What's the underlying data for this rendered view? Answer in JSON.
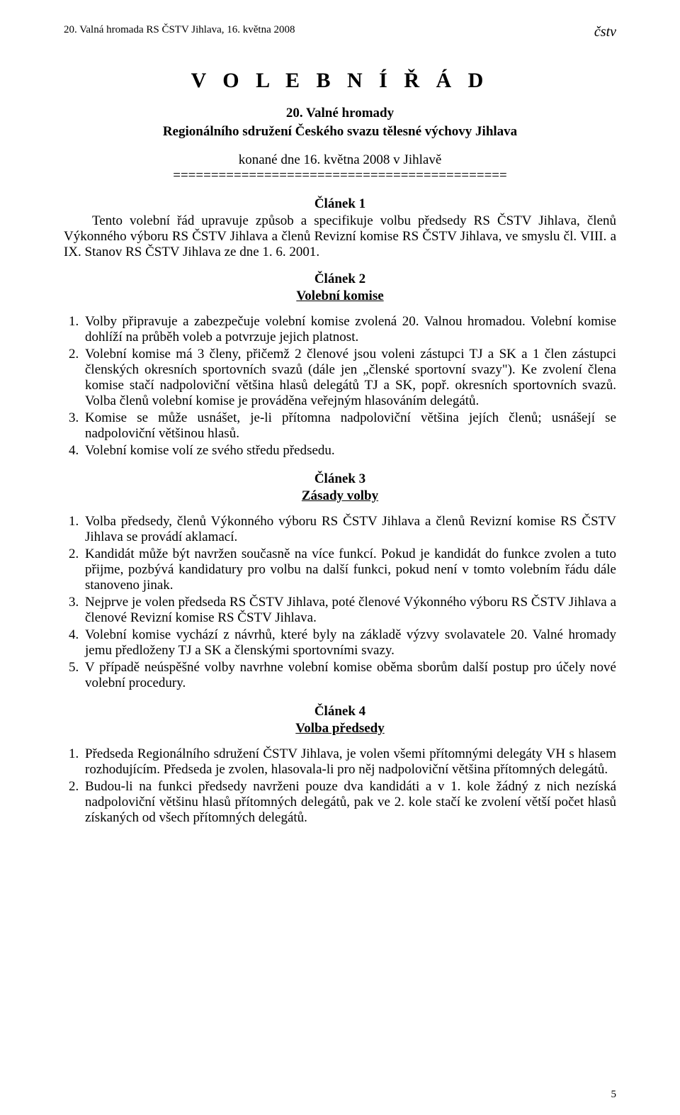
{
  "header": {
    "left": "20. Valná hromada RS ČSTV Jihlava, 16. května 2008",
    "logo": "čstv"
  },
  "title": "V O L E B N Í   Ř Á D",
  "subtitle": {
    "line1": "20. Valné hromady",
    "line2": "Regionálního sdružení Českého svazu tělesné výchovy Jihlava"
  },
  "konane": "konané dne 16. května 2008 v Jihlavě",
  "divider": "============================================",
  "article1": {
    "head": "Článek 1",
    "text": "Tento volební řád upravuje způsob a specifikuje volbu předsedy RS ČSTV Jihlava, členů Výkonného výboru RS ČSTV Jihlava a členů Revizní komise RS ČSTV Jihlava,   ve smyslu čl. VIII. a IX. Stanov RS ČSTV Jihlava ze dne 1. 6. 2001."
  },
  "article2": {
    "head": "Článek 2",
    "sub": "Volební komise",
    "items": [
      "Volby připravuje a zabezpečuje volební komise zvolená 20. Valnou hromadou. Volební komise dohlíží na průběh voleb a potvrzuje jejich platnost.",
      "Volební komise má 3 členy, přičemž 2 členové jsou voleni zástupci TJ a SK a 1 člen zástupci členských okresních sportovních svazů (dále jen „členské sportovní svazy\"). Ke zvolení člena komise stačí nadpoloviční většina hlasů delegátů  TJ a SK, popř. okresních sportovních svazů. Volba členů volební komise je prováděna veřejným hlasováním delegátů.",
      "Komise se může usnášet, je-li přítomna nadpoloviční většina jejích členů; usnášejí se nadpoloviční většinou hlasů.",
      "Volební komise volí ze svého středu předsedu."
    ]
  },
  "article3": {
    "head": "Článek 3",
    "sub": "Zásady volby",
    "items": [
      "Volba předsedy, členů Výkonného výboru RS ČSTV Jihlava a členů Revizní komise RS ČSTV Jihlava se provádí aklamací.",
      "Kandidát může být navržen současně na více funkcí. Pokud je kandidát        do funkce zvolen a tuto přijme, pozbývá kandidatury pro volbu na další funkci, pokud není v tomto volebním řádu dále stanoveno jinak.",
      "Nejprve je volen předseda RS ČSTV Jihlava, poté členové Výkonného výboru RS ČSTV Jihlava a členové Revizní komise RS ČSTV Jihlava.",
      "Volební komise vychází z návrhů, které byly na základě výzvy svolavatele 20. Valné hromady jemu předloženy TJ a SK a členskými sportovními svazy.",
      "V případě neúspěšné volby navrhne volební komise oběma sborům další postup pro účely nové volební procedury."
    ]
  },
  "article4": {
    "head": "Článek 4",
    "sub": "Volba předsedy",
    "items": [
      "Předseda Regionálního sdružení ČSTV Jihlava, je volen všemi přítomnými delegáty VH s hlasem rozhodujícím. Předseda je zvolen, hlasovala-li pro něj nadpoloviční většina přítomných delegátů.",
      "Budou-li na funkci předsedy navrženi pouze dva kandidáti a v 1. kole žádný z nich nezíská nadpoloviční většinu hlasů přítomných delegátů, pak ve 2. kole stačí ke zvolení větší počet hlasů získaných od všech přítomných delegátů."
    ]
  },
  "pageNumber": "5"
}
